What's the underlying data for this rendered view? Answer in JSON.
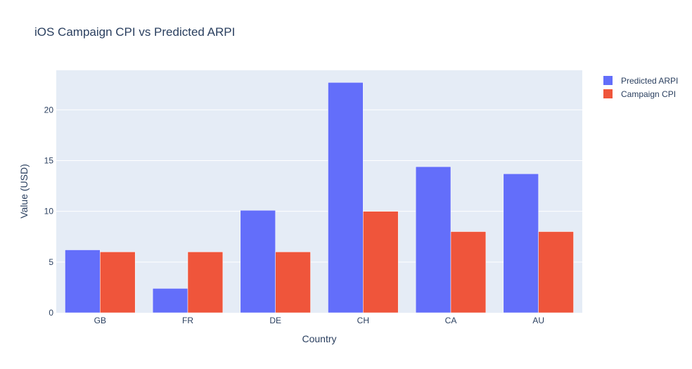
{
  "chart_data": {
    "type": "bar",
    "title": "iOS Campaign CPI vs Predicted ARPI",
    "xlabel": "Country",
    "ylabel": "Value (USD)",
    "categories": [
      "GB",
      "FR",
      "DE",
      "CH",
      "CA",
      "AU"
    ],
    "series": [
      {
        "name": "Predicted ARPI",
        "color": "#636efa",
        "values": [
          6.2,
          2.4,
          10.1,
          22.7,
          14.4,
          13.7
        ]
      },
      {
        "name": "Campaign CPI",
        "color": "#ef553b",
        "values": [
          6,
          6,
          6,
          10,
          8,
          8
        ]
      }
    ],
    "ylim": [
      0,
      23.9
    ],
    "yticks": [
      0,
      5,
      10,
      15,
      20
    ],
    "grid": true,
    "legend_position": "top-right",
    "plot_background": "#e5ecf6"
  }
}
